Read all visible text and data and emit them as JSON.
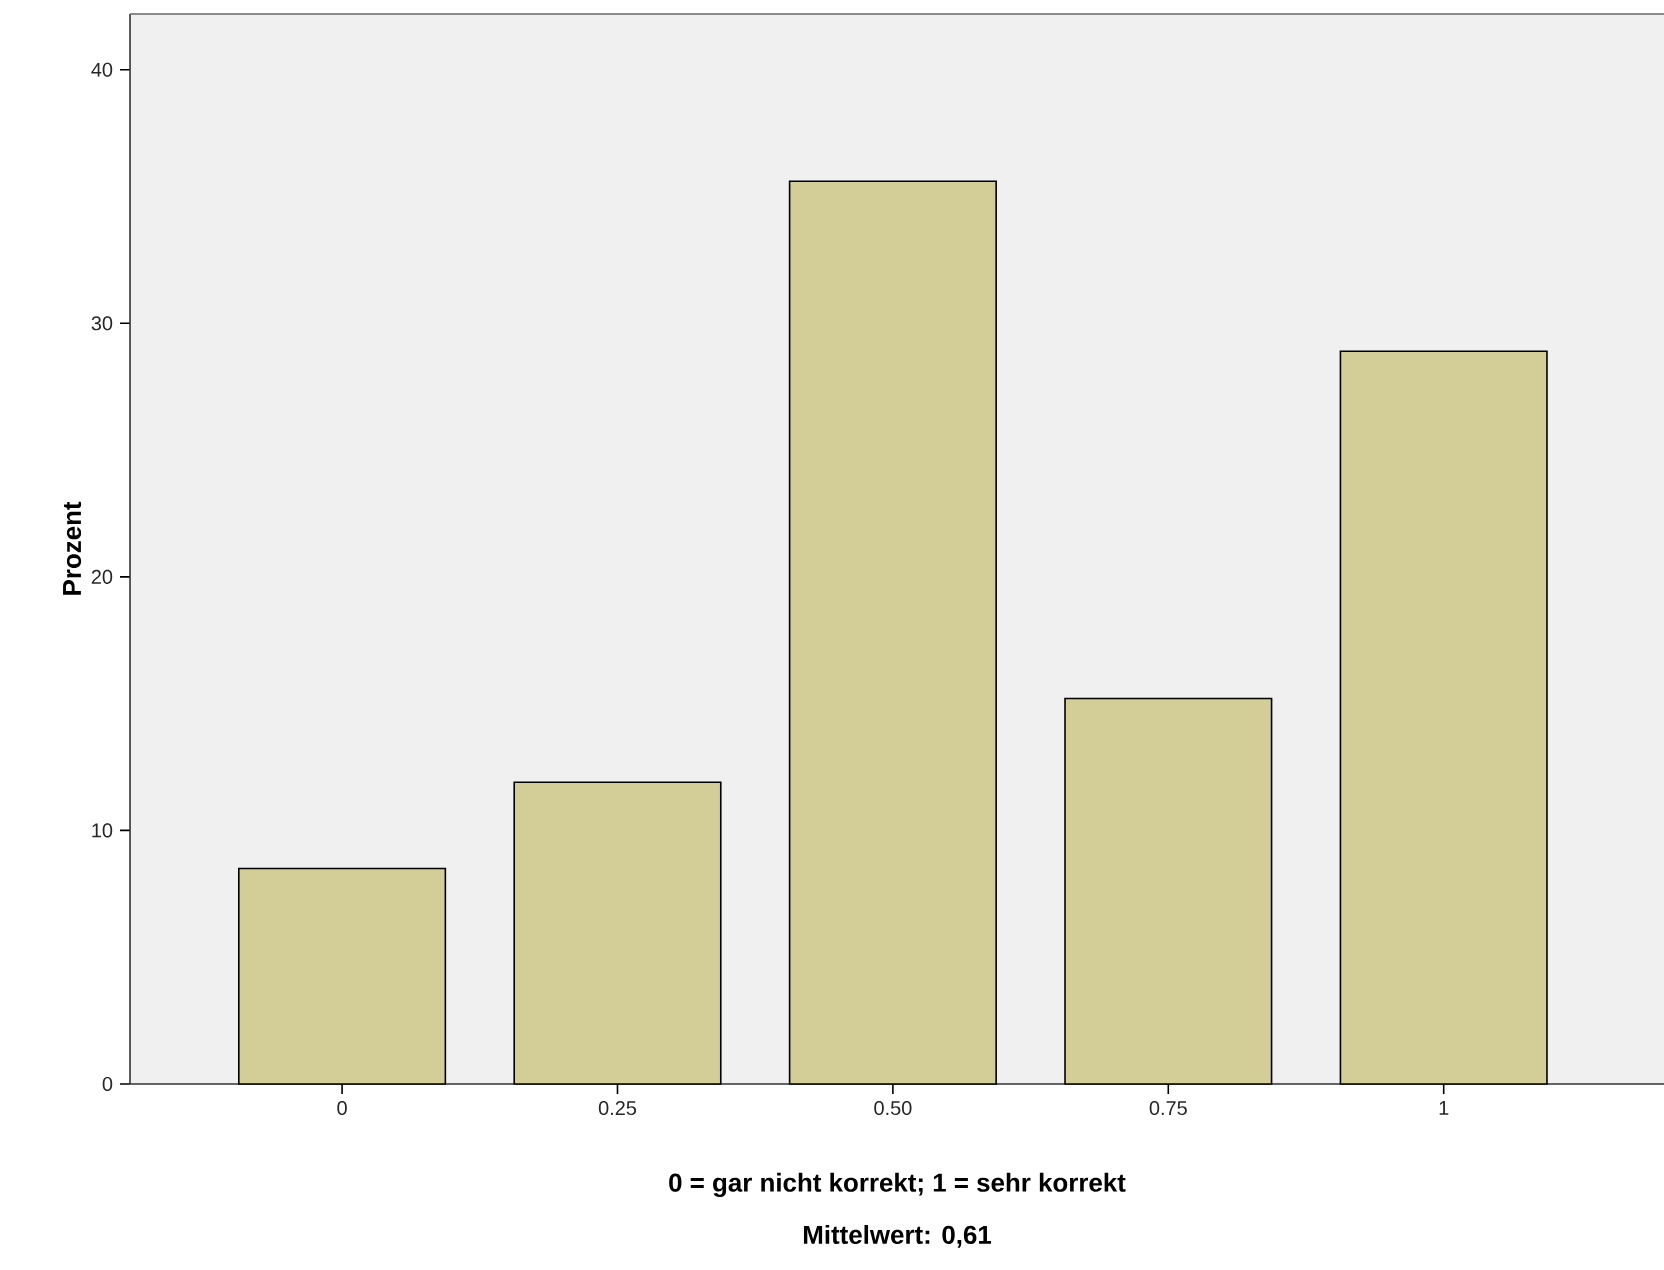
{
  "chart_data": {
    "type": "bar",
    "categories": [
      "0",
      "0.25",
      "0.50",
      "0.75",
      "1"
    ],
    "values": [
      8.5,
      11.9,
      35.6,
      15.2,
      28.9
    ],
    "color": "#d3ce97",
    "xlabel": "0 = gar nicht korrekt; 1 = sehr korrekt",
    "ylabel": "Prozent",
    "annotations": [
      "Mittelwert: 0,61"
    ],
    "ylim": [
      0,
      42.2
    ],
    "yticks": [
      0,
      10,
      20,
      30,
      40
    ],
    "grid": false
  }
}
